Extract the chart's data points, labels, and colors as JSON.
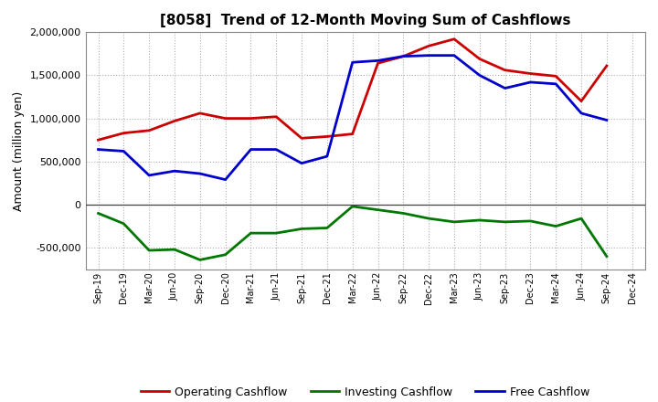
{
  "title": "[8058]  Trend of 12-Month Moving Sum of Cashflows",
  "ylabel": "Amount (million yen)",
  "background_color": "#ffffff",
  "plot_bg_color": "#ffffff",
  "grid_color": "#b0b0b0",
  "x_labels": [
    "Sep-19",
    "Dec-19",
    "Mar-20",
    "Jun-20",
    "Sep-20",
    "Dec-20",
    "Mar-21",
    "Jun-21",
    "Sep-21",
    "Dec-21",
    "Mar-22",
    "Jun-22",
    "Sep-22",
    "Dec-22",
    "Mar-23",
    "Jun-23",
    "Sep-23",
    "Dec-23",
    "Mar-24",
    "Jun-24",
    "Sep-24",
    "Dec-24"
  ],
  "operating": [
    750000,
    830000,
    860000,
    970000,
    1060000,
    1000000,
    1000000,
    1020000,
    770000,
    790000,
    820000,
    1640000,
    1720000,
    1840000,
    1920000,
    1690000,
    1560000,
    1520000,
    1490000,
    1200000,
    1610000,
    null
  ],
  "investing": [
    -100000,
    -220000,
    -530000,
    -520000,
    -640000,
    -580000,
    -330000,
    -330000,
    -280000,
    -270000,
    -20000,
    -60000,
    -100000,
    -160000,
    -200000,
    -180000,
    -200000,
    -190000,
    -250000,
    -160000,
    -600000,
    null
  ],
  "free": [
    640000,
    620000,
    340000,
    390000,
    360000,
    290000,
    640000,
    640000,
    480000,
    560000,
    1650000,
    1670000,
    1720000,
    1730000,
    1730000,
    1500000,
    1350000,
    1420000,
    1400000,
    1060000,
    980000,
    null
  ],
  "operating_color": "#cc0000",
  "investing_color": "#007700",
  "free_color": "#0000cc",
  "ylim": [
    -750000,
    2000000
  ],
  "yticks": [
    -500000,
    0,
    500000,
    1000000,
    1500000,
    2000000
  ],
  "line_width": 2.0
}
